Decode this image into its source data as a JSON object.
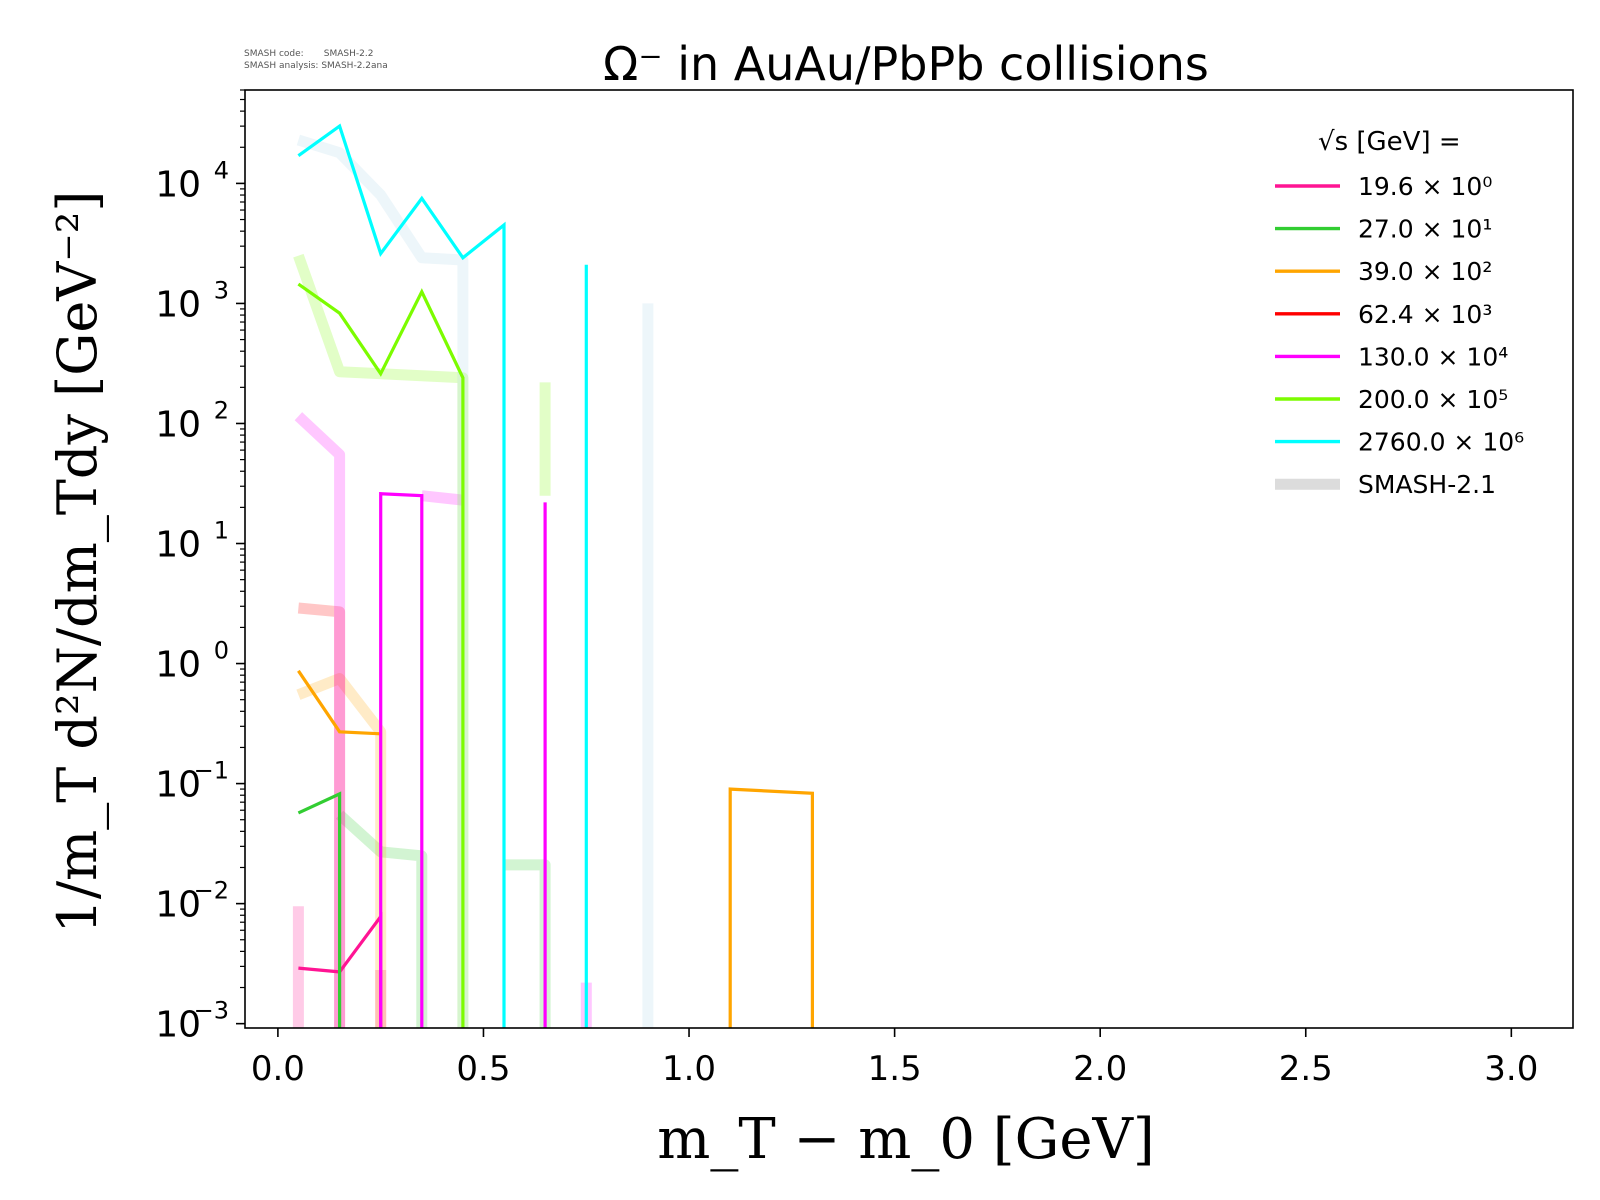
{
  "chart_data": {
    "type": "line",
    "title": "Ω⁻ in AuAu/PbPb collisions",
    "xlabel": "m_T − m_0 [GeV]",
    "ylabel": "1/m_T d²N/dm_Tdy [GeV⁻²]",
    "xlim": [
      -0.08,
      3.15
    ],
    "ylim": [
      0.00092,
      60000
    ],
    "yscale": "log",
    "x_ticks": [
      "0.0",
      "0.5",
      "1.0",
      "1.5",
      "2.0",
      "2.5",
      "3.0"
    ],
    "y_ticks": [
      {
        "value": 0.001,
        "base": "10",
        "exp": "−3"
      },
      {
        "value": 0.01,
        "base": "10",
        "exp": "−2"
      },
      {
        "value": 0.1,
        "base": "10",
        "exp": "−1"
      },
      {
        "value": 1,
        "base": "10",
        "exp": "0"
      },
      {
        "value": 10,
        "base": "10",
        "exp": "1"
      },
      {
        "value": 100,
        "base": "10",
        "exp": "2"
      },
      {
        "value": 1000,
        "base": "10",
        "exp": "3"
      },
      {
        "value": 10000,
        "base": "10",
        "exp": "4"
      }
    ],
    "legend": {
      "position": "top-right",
      "title": "√s  [GeV] =",
      "entries": [
        {
          "label": "19.6 × 10⁰",
          "color": "#ff1493"
        },
        {
          "label": "27.0 × 10¹",
          "color": "#32cd32"
        },
        {
          "label": "39.0 × 10²",
          "color": "#ffa500"
        },
        {
          "label": "62.4 × 10³",
          "color": "#ff0000"
        },
        {
          "label": "130.0 × 10⁴",
          "color": "#ff00ff"
        },
        {
          "label": "200.0 × 10⁵",
          "color": "#7cfc00"
        },
        {
          "label": "2760.0 × 10⁶",
          "color": "#00ffff"
        },
        {
          "label": "SMASH-2.1",
          "color": "#dcdcdc"
        }
      ]
    },
    "reference_series": [
      {
        "name": "SMASH-2.1 (19.6)",
        "color": "#ff1493",
        "x": [
          0.05,
          0.05
        ],
        "y": [
          0.0009,
          0.0095
        ]
      },
      {
        "name": "SMASH-2.1 (19.6)",
        "color": "#ff1493",
        "x": [
          0.25,
          0.25
        ],
        "y": [
          0.0009,
          0.0028
        ]
      },
      {
        "name": "SMASH-2.1 (27.0)",
        "color": "#32cd32",
        "x": [
          0.15,
          0.15,
          0.25,
          0.35,
          0.35
        ],
        "y": [
          0.055,
          0.055,
          0.027,
          0.025,
          0.0009
        ]
      },
      {
        "name": "SMASH-2.1 (27.0)",
        "color": "#32cd32",
        "x": [
          0.55,
          0.65,
          0.65
        ],
        "y": [
          0.021,
          0.021,
          0.0009
        ]
      },
      {
        "name": "SMASH-2.1 (39.0)",
        "color": "#ffa500",
        "x": [
          0.05,
          0.15,
          0.25,
          0.25
        ],
        "y": [
          0.55,
          0.75,
          0.27,
          0.0009
        ]
      },
      {
        "name": "SMASH-2.1 (62.4)",
        "color": "#ff0000",
        "x": [
          0.05,
          0.15,
          0.15
        ],
        "y": [
          2.9,
          2.7,
          0.0009
        ]
      },
      {
        "name": "SMASH-2.1 (130.0)",
        "color": "#ff00ff",
        "x": [
          0.05,
          0.15,
          0.15
        ],
        "y": [
          115,
          55,
          0.0009
        ]
      },
      {
        "name": "SMASH-2.1 (130.0)",
        "color": "#ff00ff",
        "x": [
          0.35,
          0.45
        ],
        "y": [
          25,
          23
        ]
      },
      {
        "name": "SMASH-2.1 (130.0)",
        "color": "#ff00ff",
        "x": [
          0.75,
          0.75
        ],
        "y": [
          0.0009,
          0.0022
        ]
      },
      {
        "name": "SMASH-2.1 (200.0)",
        "color": "#7cfc00",
        "x": [
          0.05,
          0.15,
          0.45,
          0.45
        ],
        "y": [
          2500,
          270,
          240,
          0.0009
        ]
      },
      {
        "name": "SMASH-2.1 (200.0)",
        "color": "#7cfc00",
        "x": [
          0.65,
          0.65
        ],
        "y": [
          25,
          220
        ]
      },
      {
        "name": "SMASH-2.1 (2760.0)",
        "color": "#add8e6",
        "x": [
          0.05,
          0.15,
          0.25,
          0.35,
          0.45,
          0.45
        ],
        "y": [
          23000,
          18000,
          8000,
          2400,
          2300,
          0.0009
        ]
      },
      {
        "name": "SMASH-2.1 (2760.0)",
        "color": "#add8e6",
        "x": [
          0.9,
          0.9
        ],
        "y": [
          0.0009,
          1000
        ]
      }
    ],
    "series": [
      {
        "name": "19.6 × 10⁰",
        "color": "#ff1493",
        "x": [
          0.05,
          0.15,
          0.25,
          0.25
        ],
        "y": [
          0.0029,
          0.0027,
          0.0078,
          0.0009
        ]
      },
      {
        "name": "27.0 × 10¹",
        "color": "#32cd32",
        "x": [
          0.05,
          0.15,
          0.15
        ],
        "y": [
          0.057,
          0.082,
          0.0009
        ]
      },
      {
        "name": "39.0 × 10²",
        "color": "#ffa500",
        "x": [
          0.05,
          0.15,
          0.25
        ],
        "y": [
          0.87,
          0.27,
          0.26
        ]
      },
      {
        "name": "39.0 × 10²",
        "color": "#ffa500",
        "x": [
          1.1,
          1.1,
          1.3,
          1.3
        ],
        "y": [
          0.0009,
          0.09,
          0.083,
          0.0009
        ]
      },
      {
        "name": "130.0 × 10⁴",
        "color": "#ff00ff",
        "x": [
          0.25,
          0.25,
          0.35,
          0.35
        ],
        "y": [
          0.0009,
          26,
          25,
          0.0009
        ]
      },
      {
        "name": "130.0 × 10⁴",
        "color": "#ff00ff",
        "x": [
          0.65,
          0.65
        ],
        "y": [
          0.0009,
          22
        ]
      },
      {
        "name": "200.0 × 10⁵",
        "color": "#7cfc00",
        "x": [
          0.05,
          0.15,
          0.25,
          0.35,
          0.45,
          0.45
        ],
        "y": [
          1450,
          830,
          260,
          1250,
          240,
          0.0009
        ]
      },
      {
        "name": "2760.0 × 10⁶",
        "color": "#00ffff",
        "x": [
          0.05,
          0.15,
          0.25,
          0.35,
          0.45,
          0.55,
          0.55
        ],
        "y": [
          17000,
          30000,
          2600,
          7500,
          2400,
          4500,
          0.0009
        ]
      },
      {
        "name": "2760.0 × 10⁶",
        "color": "#00ffff",
        "x": [
          0.75,
          0.75
        ],
        "y": [
          0.0009,
          2100
        ]
      }
    ]
  },
  "smash_info": {
    "code_label": "SMASH code:",
    "code_value": "SMASH-2.2",
    "analysis_label": "SMASH analysis:",
    "analysis_value": "SMASH-2.2ana"
  }
}
